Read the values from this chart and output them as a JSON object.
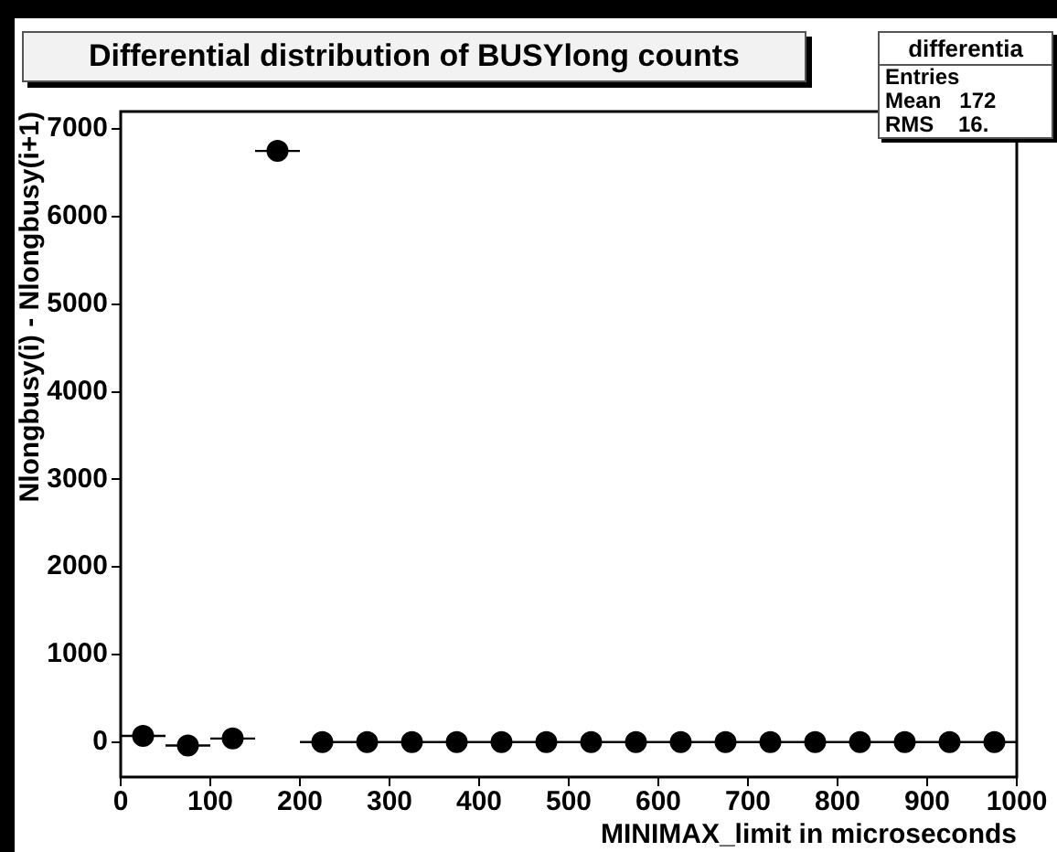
{
  "chart_data": {
    "type": "scatter",
    "title": "Differential distribution of BUSYlong counts",
    "xlabel": "MINIMAX_limit in microseconds",
    "ylabel": "Nlongbusy(i) - Nlongbusy(i+1)",
    "x": [
      25,
      75,
      125,
      175,
      225,
      275,
      325,
      375,
      425,
      475,
      525,
      575,
      625,
      675,
      725,
      775,
      825,
      875,
      925,
      975
    ],
    "values": [
      70,
      -40,
      40,
      6750,
      0,
      0,
      0,
      0,
      0,
      0,
      0,
      0,
      0,
      0,
      0,
      0,
      0,
      0,
      0,
      0
    ],
    "xerrors": [
      25,
      25,
      25,
      25,
      25,
      25,
      25,
      25,
      25,
      25,
      25,
      25,
      25,
      25,
      25,
      25,
      25,
      25,
      25,
      25
    ],
    "color": "#000000",
    "marker": "circle",
    "grid": false,
    "legend": false,
    "xlim": [
      0,
      1000
    ],
    "xticks": [
      0,
      100,
      200,
      300,
      400,
      500,
      600,
      700,
      800,
      900,
      1000
    ],
    "ylim": [
      -400,
      7200
    ],
    "yticks": [
      0,
      1000,
      2000,
      3000,
      4000,
      5000,
      6000,
      7000
    ],
    "annotations": [
      "differentia",
      "Entries",
      "Mean   172",
      "RMS    16."
    ]
  }
}
